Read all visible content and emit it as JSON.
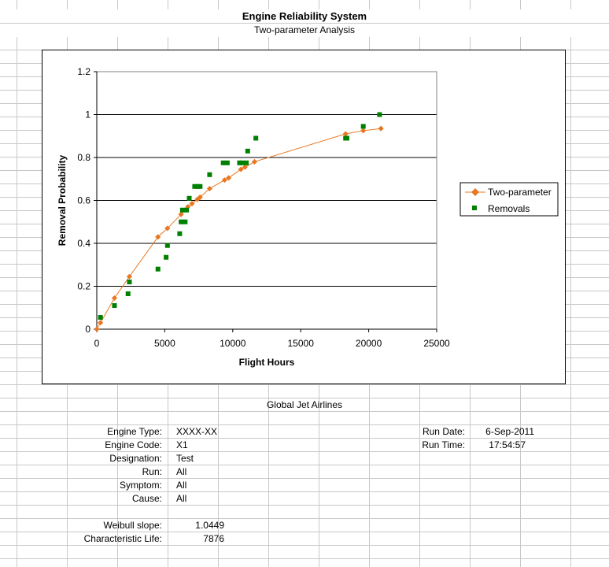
{
  "sheet": {
    "title": "Engine Reliability System",
    "subtitle": "Two-parameter Analysis",
    "airline": "Global Jet Airlines"
  },
  "info_left": [
    {
      "label": "Engine Type:",
      "value": "XXXX-XX"
    },
    {
      "label": "Engine Code:",
      "value": "X1"
    },
    {
      "label": "Designation:",
      "value": "Test"
    },
    {
      "label": "Run:",
      "value": "All"
    },
    {
      "label": "Symptom:",
      "value": "All"
    },
    {
      "label": "Cause:",
      "value": "All"
    }
  ],
  "weibull": [
    {
      "label": "Weibull slope:",
      "value": "1.0449"
    },
    {
      "label": "Characteristic Life:",
      "value": "7876"
    }
  ],
  "info_right": [
    {
      "label": "Run Date:",
      "value": "6-Sep-2011"
    },
    {
      "label": "Run Time:",
      "value": "17:54:57"
    }
  ],
  "chart_data": {
    "type": "scatter",
    "title": "",
    "xlabel": "Flight Hours",
    "ylabel": "Removal Probability",
    "xlim": [
      0,
      25000
    ],
    "ylim": [
      0,
      1.2
    ],
    "x_ticks": [
      "0",
      "5000",
      "10000",
      "15000",
      "20000",
      "25000"
    ],
    "y_ticks": [
      "0",
      "0.2",
      "0.4",
      "0.6",
      "0.8",
      "1",
      "1.2"
    ],
    "grid": "horizontal",
    "legend_position": "right",
    "colors": {
      "line": "#E87722",
      "points": "#008000"
    },
    "series": [
      {
        "name": "Two-parameter",
        "style": "line-diamond",
        "x": [
          0,
          270,
          1300,
          2400,
          4500,
          5200,
          6200,
          6700,
          7000,
          7400,
          7600,
          8300,
          9400,
          9700,
          10600,
          10900,
          11600,
          18300,
          19600,
          20900
        ],
        "y": [
          0,
          0.03,
          0.145,
          0.245,
          0.43,
          0.47,
          0.535,
          0.57,
          0.585,
          0.605,
          0.615,
          0.655,
          0.695,
          0.705,
          0.745,
          0.755,
          0.78,
          0.91,
          0.925,
          0.935
        ]
      },
      {
        "name": "Removals",
        "style": "square",
        "x": [
          270,
          1300,
          2300,
          2400,
          4500,
          5100,
          5200,
          6100,
          6200,
          6300,
          6500,
          6600,
          6800,
          7200,
          7400,
          7600,
          8300,
          9300,
          9600,
          10500,
          10700,
          11000,
          11100,
          11700,
          18300,
          18400,
          19600,
          20800
        ],
        "y": [
          0.055,
          0.11,
          0.165,
          0.22,
          0.28,
          0.335,
          0.39,
          0.445,
          0.5,
          0.555,
          0.5,
          0.555,
          0.61,
          0.665,
          0.665,
          0.665,
          0.72,
          0.775,
          0.775,
          0.775,
          0.775,
          0.775,
          0.83,
          0.89,
          0.89,
          0.89,
          0.945,
          1.0
        ]
      }
    ]
  }
}
